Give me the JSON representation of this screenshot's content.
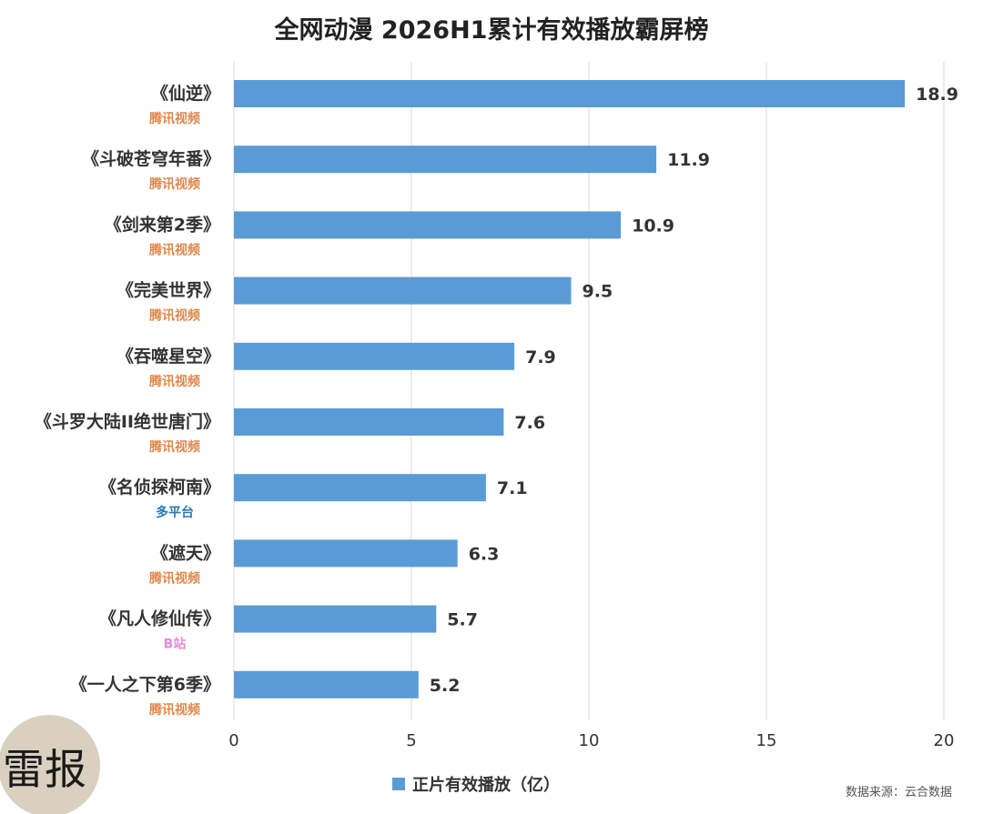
{
  "chart_data": {
    "type": "bar",
    "orientation": "horizontal",
    "title": "全网动漫 2026H1累计有效播放霸屏榜",
    "categories": [
      "《仙逆》",
      "《斗破苍穹年番》",
      "《剑来第2季》",
      "《完美世界》",
      "《吞噬星空》",
      "《斗罗大陆II绝世唐门》",
      "《名侦探柯南》",
      "《遮天》",
      "《凡人修仙传》",
      "《一人之下第6季》"
    ],
    "platforms": [
      "腾讯视频",
      "腾讯视频",
      "腾讯视频",
      "腾讯视频",
      "腾讯视频",
      "腾讯视频",
      "多平台",
      "腾讯视频",
      "B站",
      "腾讯视频"
    ],
    "platform_colors": {
      "腾讯视频": "#e0874a",
      "多平台": "#2a7ab5",
      "B站": "#e88ad8"
    },
    "series": [
      {
        "name": "正片有效播放（亿）",
        "values": [
          18.9,
          11.9,
          10.9,
          9.5,
          7.9,
          7.6,
          7.1,
          6.3,
          5.7,
          5.2
        ],
        "color": "#5b9bd5"
      }
    ],
    "xlim": [
      0,
      20
    ],
    "xticks": [
      0,
      5,
      10,
      15,
      20
    ],
    "grid": true,
    "legend_position": "bottom-center",
    "source": "数据来源：云合数据"
  },
  "watermark": "雷报"
}
